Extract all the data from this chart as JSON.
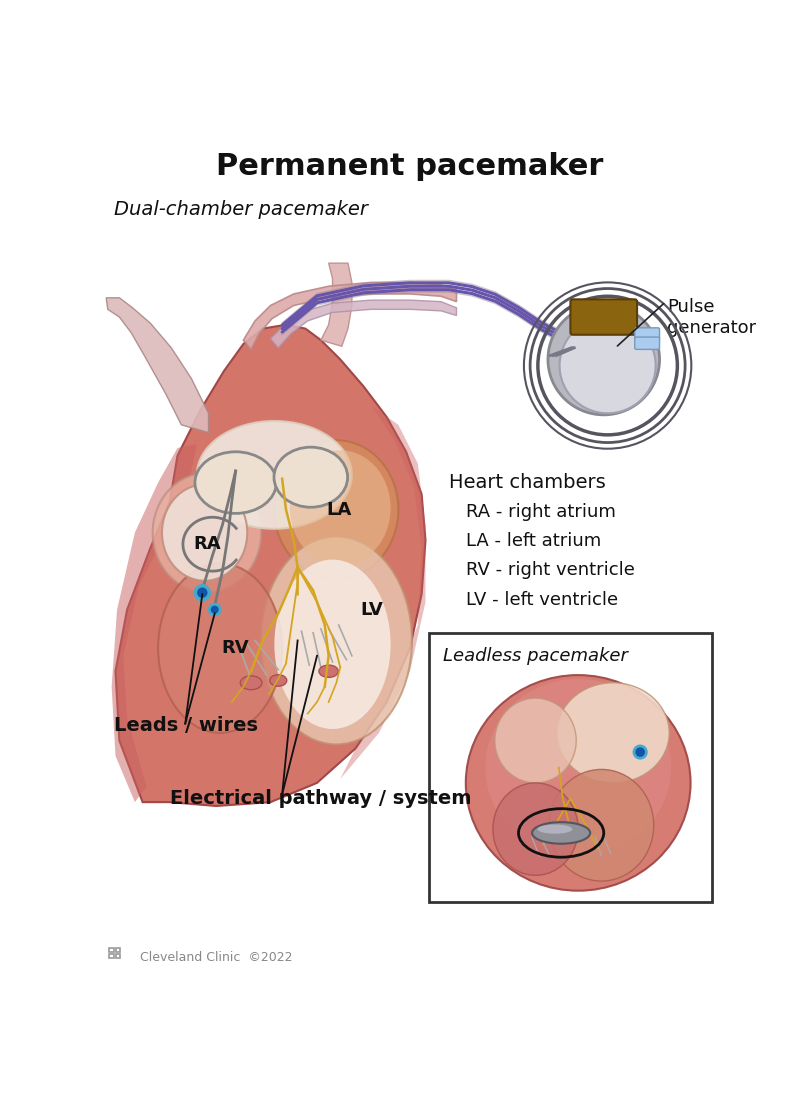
{
  "title": "Permanent pacemaker",
  "subtitle_dual": "Dual-chamber pacemaker",
  "subtitle_leadless": "Leadless pacemaker",
  "pulse_generator_label": "Pulse\ngenerator",
  "heart_chambers_title": "Heart chambers",
  "heart_chambers_items": [
    "RA - right atrium",
    "LA - left atrium",
    "RV - right ventricle",
    "LV - left ventricle"
  ],
  "leads_label": "Leads / wires",
  "electrical_label": "Electrical pathway / system",
  "copyright": "Cleveland Clinic  ©2022",
  "bg_color": "#ffffff",
  "heart_main_color": "#D4756A",
  "heart_light_color": "#E8A898",
  "heart_pale_color": "#ECC8B8",
  "heart_dark_color": "#C05858",
  "atria_color": "#E8C0A8",
  "vessel_color": "#D8A090",
  "valve_color": "#EED8C8",
  "white_inner": "#F5EEE8",
  "yellow_path": "#D4A520",
  "lead_wire_color": "#888888",
  "blue_electrode": "#1155AA",
  "cyan_ring": "#44AACC",
  "gold_connector": "#8B6410",
  "device_silver": "#B8B8C0",
  "device_gray": "#C8C8D0",
  "purple_lead": "#8877AA",
  "aorta_color": "#DDAAAA",
  "title_fontsize": 22,
  "subtitle_fontsize": 14,
  "label_fontsize": 13,
  "chamber_label_fontsize": 13,
  "annotation_fontsize": 14,
  "small_fontsize": 10
}
